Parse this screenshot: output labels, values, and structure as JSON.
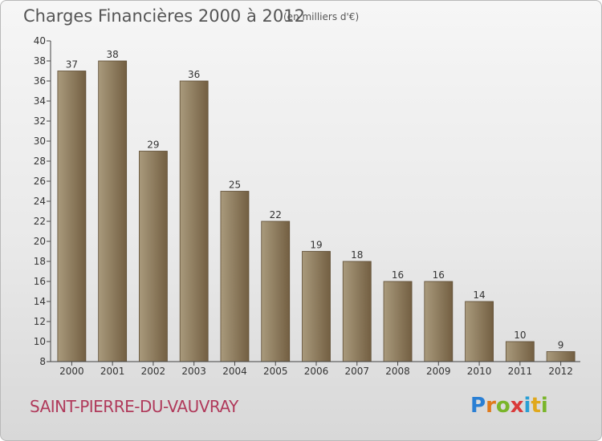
{
  "title": "Charges Financières 2000 à 2012",
  "subtitle": "(en milliers d'€)",
  "commune": "SAINT-PIERRE-DU-VAUVRAY",
  "logo": {
    "letters": [
      {
        "ch": "P",
        "color": "#2a7fd4"
      },
      {
        "ch": "r",
        "color": "#e07a1c"
      },
      {
        "ch": "o",
        "color": "#7ab52a"
      },
      {
        "ch": "x",
        "color": "#d93a3a"
      },
      {
        "ch": "i",
        "color": "#2a9fd4"
      },
      {
        "ch": "t",
        "color": "#e0a81c"
      },
      {
        "ch": "i",
        "color": "#7ab52a"
      }
    ]
  },
  "colors": {
    "bar_light": "#a99a7c",
    "bar_dark": "#735f42",
    "bar_edge": "#5e4d34",
    "grid": "#cfcfcf"
  },
  "chart_data": {
    "type": "bar",
    "title": "Charges Financières 2000 à 2012",
    "subtitle": "(en milliers d'€)",
    "xlabel": "",
    "ylabel": "",
    "categories": [
      "2000",
      "2001",
      "2002",
      "2003",
      "2004",
      "2005",
      "2006",
      "2007",
      "2008",
      "2009",
      "2010",
      "2011",
      "2012"
    ],
    "values": [
      37,
      38,
      29,
      36,
      25,
      22,
      19,
      18,
      16,
      16,
      14,
      10,
      9
    ],
    "ylim": [
      8,
      40
    ],
    "yticks": [
      8,
      10,
      12,
      14,
      16,
      18,
      20,
      22,
      24,
      26,
      28,
      30,
      32,
      34,
      36,
      38,
      40
    ],
    "grid": false,
    "legend": "none"
  }
}
